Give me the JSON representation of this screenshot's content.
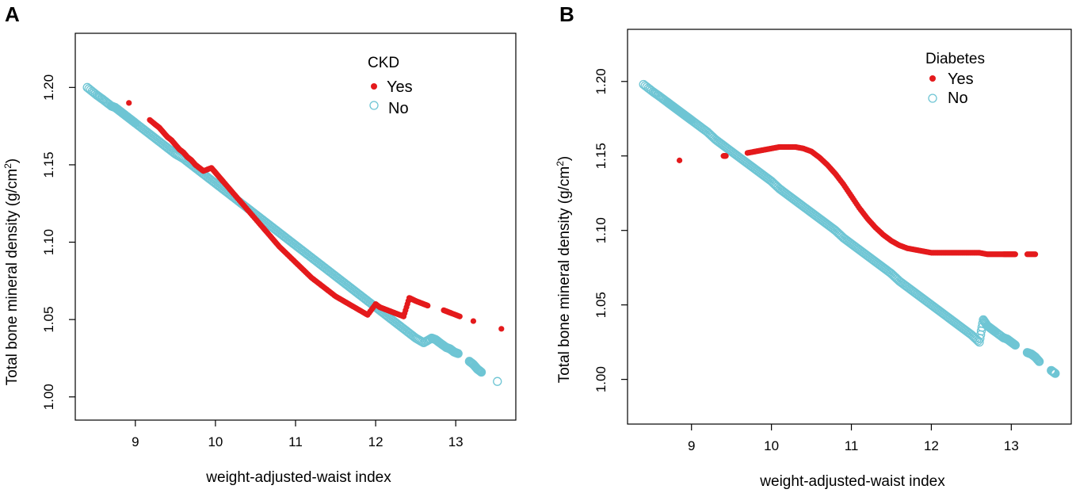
{
  "figure": {
    "background": "#ffffff"
  },
  "colors": {
    "yes": "#e41a1c",
    "no": "#6ec5d4",
    "frame": "#000000"
  },
  "chart_data": [
    {
      "type": "scatter",
      "panel": "A",
      "xlabel": "weight-adjusted-waist index",
      "ylabel_main": "Total bone mineral density (g/cm",
      "ylabel_sup": "2",
      "ylabel_close": ")",
      "xlim": [
        8.25,
        13.75
      ],
      "ylim": [
        0.985,
        1.235
      ],
      "xticks": [
        9,
        10,
        11,
        12,
        13
      ],
      "xtick_labels": [
        "9",
        "10",
        "11",
        "12",
        "13"
      ],
      "yticks": [
        1.0,
        1.05,
        1.1,
        1.15,
        1.2
      ],
      "ytick_labels": [
        "1.00",
        "1.05",
        "1.10",
        "1.15",
        "1.20"
      ],
      "legend_title": "CKD",
      "legend_position": "top-right",
      "series": [
        {
          "name": "Yes",
          "marker": "filled-circle",
          "color": "#e41a1c",
          "x": [
            8.92,
            9.18,
            9.25,
            9.3,
            9.35,
            9.4,
            9.45,
            9.5,
            9.55,
            9.6,
            9.65,
            9.7,
            9.75,
            9.8,
            9.85,
            9.95,
            10.0,
            10.05,
            10.1,
            10.2,
            10.3,
            10.4,
            10.5,
            10.6,
            10.7,
            10.8,
            10.9,
            11.0,
            11.1,
            11.2,
            11.3,
            11.4,
            11.5,
            11.6,
            11.7,
            11.8,
            11.9,
            12.0,
            12.05,
            12.1,
            12.15,
            12.2,
            12.25,
            12.3,
            12.35,
            12.42,
            12.46,
            12.5,
            12.55,
            12.6,
            12.65,
            12.85,
            12.9,
            12.95,
            13.05,
            13.22,
            13.57
          ],
          "y": [
            1.19,
            1.179,
            1.176,
            1.174,
            1.171,
            1.168,
            1.166,
            1.163,
            1.16,
            1.158,
            1.155,
            1.153,
            1.15,
            1.148,
            1.146,
            1.148,
            1.145,
            1.142,
            1.139,
            1.133,
            1.127,
            1.121,
            1.115,
            1.109,
            1.103,
            1.097,
            1.092,
            1.087,
            1.082,
            1.077,
            1.073,
            1.069,
            1.065,
            1.062,
            1.059,
            1.056,
            1.053,
            1.06,
            1.058,
            1.057,
            1.056,
            1.055,
            1.054,
            1.053,
            1.052,
            1.064,
            1.063,
            1.062,
            1.061,
            1.06,
            1.059,
            1.056,
            1.055,
            1.054,
            1.052,
            1.049,
            1.044
          ]
        },
        {
          "name": "No",
          "marker": "open-circle",
          "color": "#6ec5d4",
          "x": [
            8.4,
            8.52,
            8.6,
            8.7,
            8.75,
            8.8,
            8.85,
            8.9,
            8.95,
            9.0,
            9.1,
            9.2,
            9.3,
            9.4,
            9.5,
            9.6,
            9.7,
            9.8,
            9.9,
            10.0,
            10.1,
            10.2,
            10.3,
            10.4,
            10.5,
            10.6,
            10.7,
            10.8,
            10.9,
            11.0,
            11.1,
            11.2,
            11.3,
            11.4,
            11.5,
            11.6,
            11.7,
            11.8,
            11.9,
            12.0,
            12.1,
            12.2,
            12.3,
            12.4,
            12.5,
            12.6,
            12.7,
            12.75,
            12.8,
            12.88,
            12.93,
            12.98,
            13.03,
            13.17,
            13.22,
            13.27,
            13.32,
            13.52
          ],
          "y": [
            1.2,
            1.195,
            1.192,
            1.188,
            1.187,
            1.185,
            1.183,
            1.181,
            1.179,
            1.177,
            1.173,
            1.169,
            1.165,
            1.161,
            1.157,
            1.154,
            1.15,
            1.146,
            1.142,
            1.138,
            1.134,
            1.13,
            1.126,
            1.122,
            1.118,
            1.114,
            1.11,
            1.106,
            1.102,
            1.098,
            1.094,
            1.09,
            1.086,
            1.082,
            1.078,
            1.074,
            1.07,
            1.066,
            1.062,
            1.058,
            1.054,
            1.05,
            1.046,
            1.042,
            1.038,
            1.035,
            1.038,
            1.037,
            1.035,
            1.032,
            1.031,
            1.029,
            1.028,
            1.023,
            1.021,
            1.018,
            1.016,
            1.01
          ]
        }
      ]
    },
    {
      "type": "scatter",
      "panel": "B",
      "xlabel": "weight-adjusted-waist index",
      "ylabel_main": "Total bone mineral density (g/cm",
      "ylabel_sup": "2",
      "ylabel_close": ")",
      "xlim": [
        8.2,
        13.75
      ],
      "ylim": [
        0.97,
        1.235
      ],
      "xticks": [
        9,
        10,
        11,
        12,
        13
      ],
      "xtick_labels": [
        "9",
        "10",
        "11",
        "12",
        "13"
      ],
      "yticks": [
        1.0,
        1.05,
        1.1,
        1.15,
        1.2
      ],
      "ytick_labels": [
        "1.00",
        "1.05",
        "1.10",
        "1.15",
        "1.20"
      ],
      "legend_title": "Diabetes",
      "legend_position": "top-right",
      "series": [
        {
          "name": "Yes",
          "marker": "filled-circle",
          "color": "#e41a1c",
          "x": [
            8.85,
            9.4,
            9.43,
            9.7,
            9.8,
            9.9,
            10.0,
            10.1,
            10.2,
            10.3,
            10.4,
            10.5,
            10.6,
            10.7,
            10.8,
            10.9,
            11.0,
            11.1,
            11.2,
            11.3,
            11.4,
            11.5,
            11.6,
            11.7,
            11.8,
            11.9,
            12.0,
            12.1,
            12.2,
            12.3,
            12.4,
            12.5,
            12.6,
            12.7,
            12.8,
            12.9,
            12.95,
            13.0,
            13.05,
            13.2,
            13.3
          ],
          "y": [
            1.147,
            1.15,
            1.15,
            1.152,
            1.153,
            1.154,
            1.155,
            1.156,
            1.156,
            1.156,
            1.155,
            1.153,
            1.149,
            1.144,
            1.138,
            1.131,
            1.123,
            1.115,
            1.108,
            1.102,
            1.097,
            1.093,
            1.09,
            1.088,
            1.087,
            1.086,
            1.085,
            1.085,
            1.085,
            1.085,
            1.085,
            1.085,
            1.085,
            1.084,
            1.084,
            1.084,
            1.084,
            1.084,
            1.084,
            1.084,
            1.084
          ]
        },
        {
          "name": "No",
          "marker": "open-circle",
          "color": "#6ec5d4",
          "x": [
            8.4,
            8.52,
            8.6,
            8.7,
            8.75,
            8.8,
            8.85,
            8.9,
            8.95,
            9.0,
            9.1,
            9.2,
            9.3,
            9.4,
            9.5,
            9.6,
            9.7,
            9.8,
            9.9,
            10.0,
            10.1,
            10.2,
            10.3,
            10.4,
            10.5,
            10.6,
            10.7,
            10.8,
            10.9,
            11.0,
            11.1,
            11.2,
            11.3,
            11.4,
            11.5,
            11.6,
            11.7,
            11.8,
            11.9,
            12.0,
            12.1,
            12.2,
            12.3,
            12.4,
            12.5,
            12.6,
            12.65,
            12.7,
            12.75,
            12.8,
            12.9,
            12.95,
            13.0,
            13.05,
            13.2,
            13.25,
            13.3,
            13.35,
            13.5,
            13.55
          ],
          "y": [
            1.198,
            1.193,
            1.19,
            1.186,
            1.184,
            1.182,
            1.18,
            1.178,
            1.176,
            1.174,
            1.17,
            1.166,
            1.161,
            1.157,
            1.153,
            1.149,
            1.145,
            1.141,
            1.137,
            1.133,
            1.128,
            1.124,
            1.12,
            1.116,
            1.112,
            1.108,
            1.104,
            1.1,
            1.095,
            1.091,
            1.087,
            1.083,
            1.079,
            1.075,
            1.071,
            1.066,
            1.062,
            1.058,
            1.054,
            1.05,
            1.046,
            1.042,
            1.038,
            1.034,
            1.03,
            1.025,
            1.04,
            1.036,
            1.034,
            1.032,
            1.028,
            1.027,
            1.025,
            1.023,
            1.018,
            1.017,
            1.015,
            1.012,
            1.006,
            1.004
          ]
        }
      ]
    }
  ]
}
